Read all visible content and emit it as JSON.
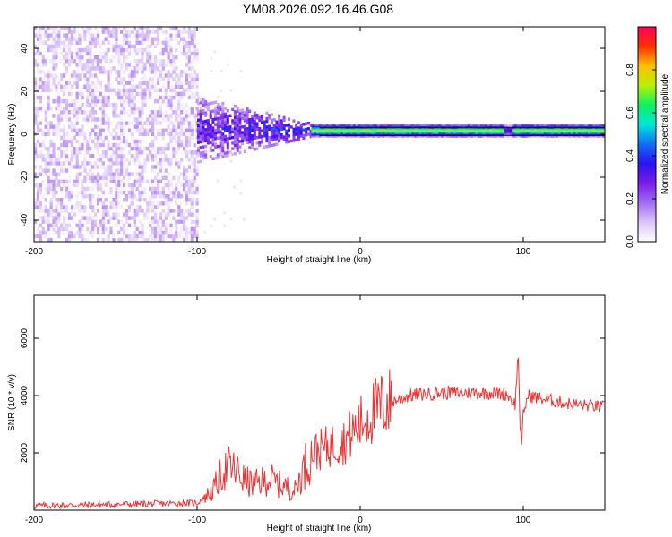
{
  "title": "YM08.2026.092.16.46.G08",
  "chart_data": [
    {
      "type": "heatmap",
      "xlabel": "Height of straight line (km)",
      "ylabel": "Frequency (Hz)",
      "xlim": [
        -200,
        150
      ],
      "ylim": [
        -50,
        50
      ],
      "x_ticks": [
        -200,
        -100,
        0,
        100
      ],
      "y_ticks": [
        -40,
        -20,
        0,
        20,
        40
      ],
      "colorbar": {
        "label": "Normalized spectral amplitude",
        "range": [
          0.0,
          1.0
        ],
        "ticks": [
          0.0,
          0.2,
          0.4,
          0.6,
          0.8
        ],
        "colors": [
          "#ffffff",
          "#dcc4fb",
          "#a06cf5",
          "#7a1de8",
          "#2a12f0",
          "#0f6ff7",
          "#00e8d8",
          "#10f060",
          "#b8f000",
          "#ffc000",
          "#ff3000",
          "#ff0060"
        ]
      },
      "regions": [
        {
          "name": "noise",
          "x_range": [
            -200,
            -100
          ],
          "freq_range": [
            -50,
            50
          ],
          "amplitude": 0.05
        },
        {
          "name": "transition",
          "x_range": [
            -100,
            -30
          ],
          "freq_range": [
            -10,
            15
          ],
          "amplitude": 0.3
        },
        {
          "name": "carrier",
          "x_range": [
            -30,
            150
          ],
          "freq_center": 1.5,
          "freq_halfwidth": 3,
          "amplitude": 0.75
        }
      ],
      "reference_lines_hz": [
        -0.5,
        3.0
      ]
    },
    {
      "type": "line",
      "xlabel": "Height of straight line (km)",
      "ylabel": "SNR (10 * v/v)",
      "xlim": [
        -200,
        150
      ],
      "ylim": [
        0,
        7500
      ],
      "x_ticks": [
        -200,
        -100,
        0,
        100
      ],
      "y_ticks": [
        2000,
        4000,
        6000
      ],
      "series": [
        {
          "name": "SNR",
          "color": "#ee3333",
          "x": [
            -200,
            -150,
            -100,
            -90,
            -85,
            -80,
            -75,
            -70,
            -65,
            -60,
            -55,
            -50,
            -45,
            -40,
            -35,
            -30,
            -25,
            -20,
            -15,
            -10,
            -5,
            0,
            5,
            10,
            15,
            20,
            25,
            30,
            40,
            50,
            60,
            70,
            80,
            90,
            95,
            97,
            98,
            99,
            100,
            103,
            110,
            120,
            130,
            140,
            150
          ],
          "values": [
            150,
            200,
            250,
            700,
            1300,
            1500,
            1300,
            1000,
            900,
            1000,
            1100,
            900,
            800,
            700,
            1400,
            2000,
            2100,
            2200,
            2300,
            2400,
            2700,
            3000,
            3300,
            3500,
            3700,
            3800,
            3900,
            4000,
            4050,
            4100,
            4100,
            4100,
            4100,
            4050,
            3700,
            5500,
            3000,
            2200,
            3400,
            4000,
            3900,
            3800,
            3700,
            3650,
            3600
          ]
        }
      ]
    }
  ]
}
